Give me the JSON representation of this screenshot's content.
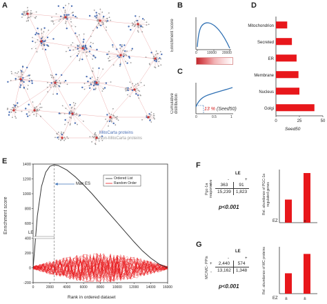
{
  "panels": {
    "A": {
      "letter": "A",
      "legend": [
        "MitoCarta proteins",
        "Non-MitoCarta proteins"
      ],
      "legend_colors": [
        "#4a6fb5",
        "#9a9a9a"
      ]
    },
    "B": {
      "letter": "B",
      "ylabel": "Enrichment Score",
      "xticks": [
        "0",
        "10000",
        "20000"
      ]
    },
    "C": {
      "letter": "C",
      "ylabel": "Cumulative distribution",
      "xticks": [
        "0",
        "0.5",
        "1"
      ],
      "annotation_pct": "13 %",
      "annotation_rest": "(Seed50)"
    },
    "D": {
      "letter": "D",
      "xlabel": "Seed50",
      "xticks": [
        "0",
        "25",
        "50"
      ]
    },
    "E": {
      "letter": "E",
      "ylabel": "Enrichment score",
      "xlabel": "Rank in ordered dataset",
      "legend": [
        "Ordered List",
        "Random Order"
      ],
      "max_label": "Max ES",
      "le_label": "LE"
    },
    "F": {
      "letter": "F",
      "row_label": "Pgc-1a responsive",
      "col_header": "LE",
      "minus": "-",
      "plus": "+",
      "cells": [
        [
          "363",
          "91"
        ],
        [
          "15,239",
          "1,823"
        ]
      ],
      "pvalue": "p<0.001",
      "bar_ylabel": "Rel. abundance of PGC-1a regulated genes",
      "bar_xaxis": "EZ",
      "bar_labels": [
        "-",
        "+"
      ],
      "bar_values": [
        1.0,
        2.15
      ]
    },
    "G": {
      "letter": "G",
      "row_label": "MC/MC- PPIs",
      "col_header": "LE",
      "minus": "-",
      "plus": "+",
      "cells": [
        [
          "2,440",
          "574"
        ],
        [
          "13,162",
          "1,348"
        ]
      ],
      "pvalue": "p<0.001",
      "bar_ylabel": "Rel. abundance of MC proteins",
      "bar_xaxis": "EZ",
      "bar_labels": [
        "±",
        "±"
      ],
      "bar_values": [
        1.0,
        1.95
      ]
    }
  },
  "chart_data": [
    {
      "type": "bar",
      "orientation": "horizontal",
      "categories": [
        "Mitochondrion",
        "Secreted",
        "ER",
        "Membrane",
        "Nucleus",
        "Golgi"
      ],
      "values": [
        12,
        17,
        22,
        24,
        25,
        41
      ],
      "xlabel": "Seed50",
      "xlim": [
        0,
        50
      ],
      "color": "#e8171b"
    },
    {
      "type": "line",
      "series": [
        {
          "name": "Ordered List",
          "x": [
            0,
            500,
            1000,
            1500,
            2000,
            2500,
            3000,
            4000,
            5000,
            6000,
            7000,
            8000,
            9000,
            10000,
            11000,
            12000,
            13000,
            14000,
            15000,
            16000
          ],
          "values": [
            0,
            700,
            1100,
            1290,
            1370,
            1390,
            1380,
            1320,
            1230,
            1120,
            1000,
            870,
            740,
            610,
            480,
            350,
            230,
            130,
            50,
            0
          ]
        }
      ],
      "xlabel": "Rank in ordered dataset",
      "ylabel": "Enrichment score",
      "xlim": [
        0,
        16000
      ],
      "ylim": [
        -200,
        1400
      ],
      "xticks": [
        0,
        2000,
        4000,
        6000,
        8000,
        10000,
        12000,
        14000,
        16000
      ],
      "yticks": [
        -200,
        0,
        200,
        400,
        600,
        800,
        1000,
        1200,
        1400
      ]
    },
    {
      "type": "bar",
      "categories": [
        "-",
        "+"
      ],
      "values": [
        1.0,
        2.15
      ],
      "color": "#e8171b"
    },
    {
      "type": "bar",
      "categories": [
        "±",
        "±"
      ],
      "values": [
        1.0,
        1.95
      ],
      "color": "#e8171b"
    }
  ]
}
